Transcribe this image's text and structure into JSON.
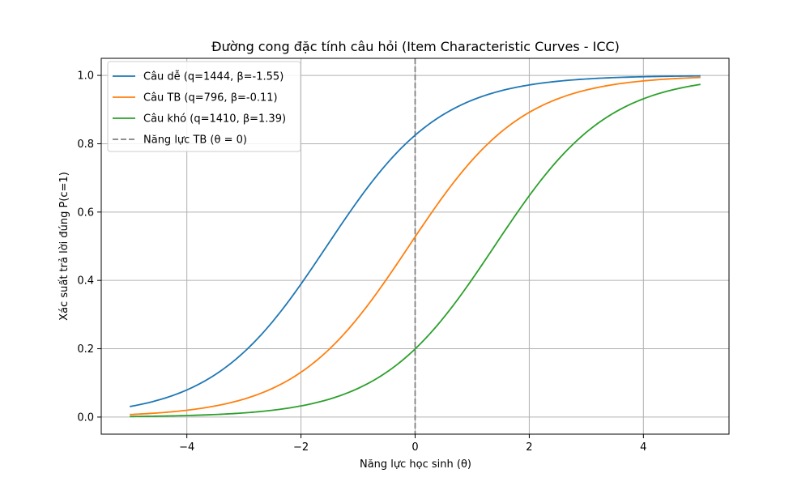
{
  "chart_data": {
    "type": "line",
    "title": "Đường cong đặc tính câu hỏi (Item Characteristic Curves - ICC)",
    "xlabel": "Năng lực học sinh (θ)",
    "ylabel": "Xác suất trả lời đúng P(c=1)",
    "xlim": [
      -5.5,
      5.5
    ],
    "ylim": [
      -0.05,
      1.05
    ],
    "x_ticks": [
      -4,
      -2,
      0,
      2,
      4
    ],
    "x_tick_labels": [
      "−4",
      "−2",
      "0",
      "2",
      "4"
    ],
    "y_ticks": [
      0.0,
      0.2,
      0.4,
      0.6,
      0.8,
      1.0
    ],
    "y_tick_labels": [
      "0.0",
      "0.2",
      "0.4",
      "0.6",
      "0.8",
      "1.0"
    ],
    "grid": true,
    "legend_position": "top-left",
    "x_range": [
      -5,
      5
    ],
    "series": [
      {
        "name": "Câu dễ (q=1444, β=-1.55)",
        "color": "#1f77b4",
        "beta": -1.55
      },
      {
        "name": "Câu TB (q=796, β=-0.11)",
        "color": "#ff7f0e",
        "beta": -0.11
      },
      {
        "name": "Câu khó (q=1410, β=1.39)",
        "color": "#2ca02c",
        "beta": 1.39
      }
    ],
    "reference_line": {
      "name": "Năng lực TB (θ = 0)",
      "x": 0,
      "color": "#808080",
      "style": "dashed"
    }
  }
}
